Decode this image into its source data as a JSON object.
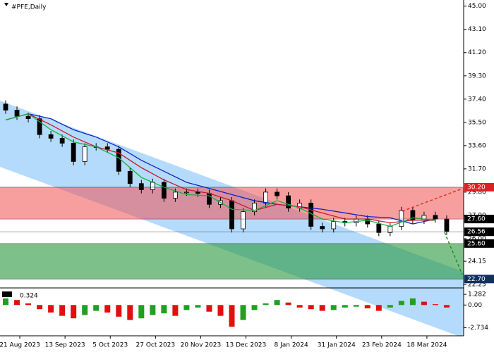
{
  "chart_data": {
    "type": "candlestick",
    "title": "#PFE,Daily",
    "x": [
      2,
      6,
      10,
      14,
      18,
      22,
      26,
      30,
      34,
      38,
      42,
      46,
      50,
      54,
      58,
      62,
      66,
      70,
      74,
      78,
      82,
      86,
      90,
      94,
      98,
      102,
      106,
      110,
      114,
      118,
      122,
      126,
      130,
      134,
      138,
      142,
      146,
      150,
      154,
      158
    ],
    "open": [
      37.0,
      36.5,
      36.0,
      35.8,
      34.5,
      34.2,
      33.8,
      32.3,
      33.5,
      33.5,
      33.3,
      31.5,
      30.5,
      30.0,
      30.6,
      29.3,
      29.8,
      29.8,
      29.7,
      28.8,
      29.1,
      26.8,
      28.2,
      28.9,
      29.8,
      29.5,
      28.5,
      28.9,
      27.0,
      26.8,
      27.4,
      27.3,
      27.6,
      27.2,
      26.5,
      27.0,
      28.3,
      27.5,
      27.9,
      27.6
    ],
    "high": [
      37.3,
      36.8,
      36.3,
      36.1,
      34.8,
      34.5,
      34.1,
      33.8,
      33.8,
      33.8,
      33.6,
      31.8,
      30.8,
      30.9,
      30.9,
      30.1,
      30.1,
      30.1,
      30.0,
      29.4,
      29.4,
      28.5,
      29.2,
      30.1,
      30.1,
      29.8,
      29.2,
      29.2,
      27.3,
      27.7,
      27.7,
      27.9,
      27.9,
      27.5,
      27.3,
      28.6,
      28.6,
      28.2,
      28.2,
      27.9
    ],
    "low": [
      36.2,
      35.7,
      35.5,
      34.2,
      33.9,
      33.5,
      32.0,
      32.0,
      33.2,
      33.0,
      31.2,
      30.2,
      29.7,
      29.7,
      29.0,
      29.0,
      29.5,
      29.4,
      28.5,
      28.5,
      26.5,
      26.5,
      27.9,
      28.6,
      29.2,
      28.2,
      28.2,
      26.7,
      26.5,
      26.5,
      27.0,
      27.0,
      26.9,
      26.2,
      26.2,
      26.7,
      27.2,
      27.2,
      27.3,
      26.3
    ],
    "close": [
      36.5,
      36.0,
      35.8,
      34.5,
      34.2,
      33.8,
      32.3,
      33.5,
      33.5,
      33.3,
      31.5,
      30.5,
      30.0,
      30.6,
      29.3,
      29.8,
      29.8,
      29.7,
      28.8,
      29.1,
      26.8,
      28.2,
      28.9,
      29.8,
      29.5,
      28.5,
      28.9,
      27.0,
      26.8,
      27.4,
      27.3,
      27.6,
      27.2,
      26.5,
      27.0,
      28.3,
      27.5,
      27.9,
      27.6,
      26.6
    ],
    "series": [
      {
        "color": "#1020c8",
        "x": [
          2,
          10,
          18,
          26,
          34,
          42,
          50,
          58,
          66,
          74,
          82,
          90,
          98,
          106,
          114,
          122,
          130,
          138,
          146,
          154
        ],
        "values": [
          35.7,
          36.2,
          35.8,
          34.9,
          34.3,
          33.5,
          32.4,
          31.5,
          30.6,
          30.1,
          29.6,
          29.1,
          28.8,
          28.6,
          28.4,
          28.1,
          27.8,
          27.7,
          27.2,
          27.6
        ]
      },
      {
        "color": "#c81830",
        "x": [
          2,
          10,
          18,
          26,
          34,
          42,
          50,
          58,
          66,
          74,
          82,
          90,
          98,
          106,
          114,
          122,
          130,
          138,
          146,
          154
        ],
        "values": [
          35.7,
          36.2,
          35.3,
          34.3,
          33.5,
          33.0,
          31.8,
          30.8,
          30.0,
          29.7,
          29.1,
          28.3,
          28.8,
          28.6,
          28.1,
          27.6,
          27.6,
          27.3,
          27.5,
          27.5
        ]
      },
      {
        "color": "#18b040",
        "x": [
          2,
          10,
          18,
          26,
          34,
          42,
          50,
          58,
          66,
          74,
          82,
          90,
          98,
          106,
          114,
          122,
          130,
          138,
          146,
          154
        ],
        "values": [
          35.7,
          36.2,
          34.9,
          33.9,
          33.5,
          32.6,
          31.0,
          30.2,
          29.6,
          29.5,
          28.4,
          28.3,
          29.1,
          28.5,
          27.6,
          27.3,
          27.5,
          27.0,
          27.7,
          27.5
        ]
      }
    ],
    "xlim": [
      0,
      164
    ],
    "ylim": [
      22.2,
      45.5
    ],
    "yticks": [
      {
        "value": 45.0,
        "label": "45.00"
      },
      {
        "value": 43.1,
        "label": "43.10"
      },
      {
        "value": 41.2,
        "label": "41.20"
      },
      {
        "value": 39.3,
        "label": "39.30"
      },
      {
        "value": 37.4,
        "label": "37.40"
      },
      {
        "value": 35.5,
        "label": "35.50"
      },
      {
        "value": 33.6,
        "label": "33.60"
      },
      {
        "value": 31.7,
        "label": "31.70"
      },
      {
        "value": 29.8,
        "label": "29.80"
      },
      {
        "value": 27.9,
        "label": "27.90"
      },
      {
        "value": 26.0,
        "label": "26.00"
      },
      {
        "value": 24.15,
        "label": "24.15"
      },
      {
        "value": 22.25,
        "label": "22.25"
      }
    ],
    "xticks": [
      {
        "value": 7,
        "label": "21 Aug 2023"
      },
      {
        "value": 23,
        "label": "13 Sep 2023"
      },
      {
        "value": 39,
        "label": "5 Oct 2023"
      },
      {
        "value": 55,
        "label": "27 Oct 2023"
      },
      {
        "value": 71,
        "label": "20 Nov 2023"
      },
      {
        "value": 87,
        "label": "13 Dec 2023"
      },
      {
        "value": 103,
        "label": "8 Jan 2024"
      },
      {
        "value": 119,
        "label": "31 Jan 2024"
      },
      {
        "value": 135,
        "label": "23 Feb 2024"
      },
      {
        "value": 151,
        "label": "18 Mar 2024"
      }
    ],
    "levels": [
      {
        "value": 30.2,
        "label": "30.20",
        "color": "#e02020"
      },
      {
        "value": 27.6,
        "label": "27.60",
        "color": "#000000"
      },
      {
        "value": 26.56,
        "label": "26.56",
        "color": "#000000"
      },
      {
        "value": 25.6,
        "label": "25.60",
        "color": "#000000"
      },
      {
        "value": 22.7,
        "label": "22.70",
        "color": "#103060"
      }
    ],
    "zones": [
      {
        "from": 27.6,
        "to": 30.2,
        "color": "rgba(240,80,80,0.55)"
      },
      {
        "from": 22.7,
        "to": 25.6,
        "color": "rgba(40,150,60,0.6)"
      }
    ],
    "oscillator": {
      "label": "0.324",
      "values": [
        0.8,
        0.6,
        0.2,
        -0.5,
        -0.9,
        -1.3,
        -1.6,
        -1.2,
        -0.7,
        -0.9,
        -1.4,
        -1.8,
        -1.6,
        -1.2,
        -1.0,
        -1.3,
        -0.6,
        -0.3,
        -0.8,
        -1.3,
        -2.6,
        -1.8,
        -0.6,
        0.2,
        0.6,
        0.3,
        -0.3,
        -0.5,
        -0.7,
        -0.6,
        -0.3,
        -0.2,
        -0.4,
        -0.7,
        -0.3,
        0.5,
        0.8,
        0.4,
        0.1,
        -0.3
      ],
      "ylim": [
        -3.7,
        1.97
      ],
      "yticks": [
        {
          "value": 1.282,
          "label": "1.282"
        },
        {
          "value": 0.0,
          "label": "0.00"
        },
        {
          "value": -2.734,
          "label": "-2.734"
        }
      ],
      "up_color": "#20a020",
      "down_color": "#e01010"
    }
  }
}
